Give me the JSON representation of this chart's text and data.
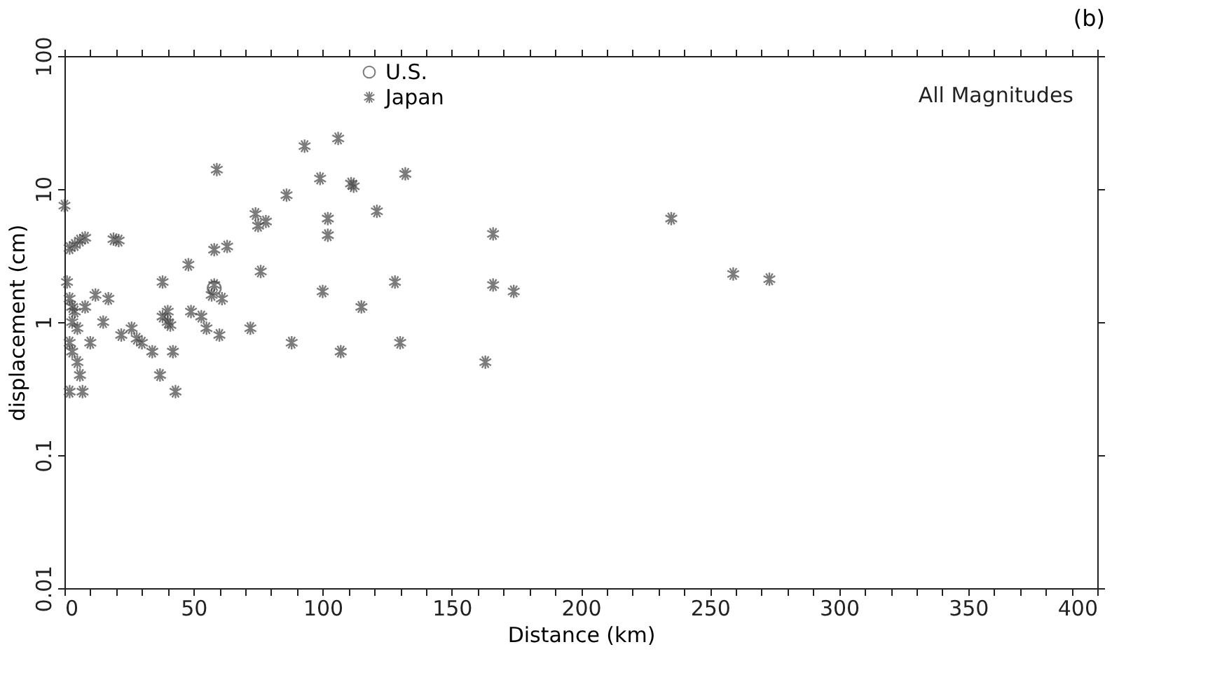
{
  "chart_data": {
    "type": "scatter",
    "title": "(b)",
    "xlabel": "Distance (km)",
    "ylabel": "displacement (cm)",
    "annotations": [
      "All Magnitudes"
    ],
    "log": "y",
    "xlim": [
      0,
      400
    ],
    "ylim": [
      0.01,
      100
    ],
    "xticks": [
      0,
      {
        "value": 10,
        "label": null
      },
      {
        "value": 20,
        "label": null
      },
      {
        "value": 30,
        "label": null
      },
      {
        "value": 40,
        "label": null
      },
      50,
      {
        "value": 60,
        "label": null
      },
      {
        "value": 70,
        "label": null
      },
      {
        "value": 80,
        "label": null
      },
      {
        "value": 90,
        "label": null
      },
      100,
      {
        "value": 110,
        "label": null
      },
      {
        "value": 120,
        "label": null
      },
      {
        "value": 130,
        "label": null
      },
      {
        "value": 140,
        "label": null
      },
      150,
      {
        "value": 160,
        "label": null
      },
      {
        "value": 170,
        "label": null
      },
      {
        "value": 180,
        "label": null
      },
      {
        "value": 190,
        "label": null
      },
      200,
      {
        "value": 210,
        "label": null
      },
      {
        "value": 220,
        "label": null
      },
      {
        "value": 230,
        "label": null
      },
      {
        "value": 240,
        "label": null
      },
      250,
      {
        "value": 260,
        "label": null
      },
      {
        "value": 270,
        "label": null
      },
      {
        "value": 280,
        "label": null
      },
      {
        "value": 290,
        "label": null
      },
      300,
      {
        "value": 310,
        "label": null
      },
      {
        "value": 320,
        "label": null
      },
      {
        "value": 330,
        "label": null
      },
      {
        "value": 340,
        "label": null
      },
      350,
      {
        "value": 360,
        "label": null
      },
      {
        "value": 370,
        "label": null
      },
      {
        "value": 380,
        "label": null
      },
      {
        "value": 390,
        "label": null
      },
      400
    ],
    "yticks": [
      0.01,
      0.1,
      1,
      10,
      100
    ],
    "grid": false,
    "legend": "top",
    "series": [
      {
        "name": "U.S.",
        "color": "#444444",
        "marker": "circle",
        "x": [
          58
        ],
        "values": [
          1.8
        ]
      },
      {
        "name": "Japan",
        "color": "#444444",
        "marker": "cross",
        "x": [
          0,
          2,
          4,
          6,
          8,
          1,
          2,
          3,
          4,
          3,
          5,
          2,
          3,
          5,
          6,
          2,
          7,
          8,
          10,
          12,
          15,
          17,
          19,
          21,
          22,
          26,
          28,
          30,
          34,
          37,
          38,
          38,
          40,
          40,
          41,
          42,
          43,
          48,
          49,
          53,
          55,
          57,
          58,
          58,
          59,
          60,
          61,
          63,
          72,
          74,
          75,
          76,
          78,
          86,
          88,
          93,
          99,
          100,
          102,
          102,
          106,
          107,
          111,
          112,
          115,
          121,
          128,
          130,
          132,
          163,
          166,
          166,
          174,
          235,
          259,
          273
        ],
        "values": [
          7.5,
          3.6,
          3.8,
          4.1,
          4.3,
          2.0,
          1.5,
          1.3,
          1.2,
          1.0,
          0.9,
          0.7,
          0.6,
          0.5,
          0.4,
          0.3,
          0.3,
          1.3,
          0.7,
          1.6,
          1.0,
          1.5,
          4.2,
          4.1,
          0.8,
          0.9,
          0.75,
          0.7,
          0.6,
          0.4,
          1.1,
          2.0,
          1.2,
          1.0,
          0.95,
          0.6,
          0.3,
          2.7,
          1.2,
          1.1,
          0.9,
          1.6,
          1.9,
          3.5,
          14,
          0.8,
          1.5,
          3.7,
          0.9,
          6.5,
          5.3,
          2.4,
          5.7,
          9,
          0.7,
          21,
          12,
          1.7,
          6,
          4.5,
          24,
          0.6,
          11,
          10.5,
          1.3,
          6.8,
          2,
          0.7,
          13,
          0.5,
          4.6,
          1.9,
          1.7,
          6,
          2.3,
          2.1
        ]
      }
    ]
  }
}
